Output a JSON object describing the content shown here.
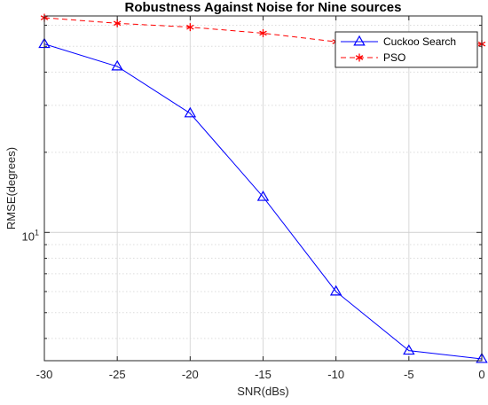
{
  "chart_data": {
    "type": "line",
    "title": "Robustness Against Noise for Nine sources",
    "xlabel": "SNR(dBs)",
    "ylabel": "RMSE(degrees)",
    "x": [
      -30,
      -25,
      -20,
      -15,
      -10,
      -5,
      0
    ],
    "xticks": [
      "-30",
      "-25",
      "-20",
      "-15",
      "-10",
      "-5",
      "0"
    ],
    "xlim": [
      -30,
      0
    ],
    "yscale": "log",
    "ylim": [
      3.3,
      65
    ],
    "ytick_label": {
      "base": "10",
      "exponent": "1",
      "value": 10
    },
    "grid": true,
    "legend_position": "top-right",
    "series": [
      {
        "name": "Cuckoo Search",
        "color": "#0000ff",
        "marker": "triangle",
        "linestyle": "solid",
        "values": [
          51,
          42,
          28,
          13.6,
          6.0,
          3.6,
          3.35
        ]
      },
      {
        "name": "PSO",
        "color": "#ff0000",
        "marker": "star",
        "linestyle": "dashed",
        "values": [
          64,
          61,
          59,
          56,
          52,
          50,
          51
        ]
      }
    ]
  }
}
